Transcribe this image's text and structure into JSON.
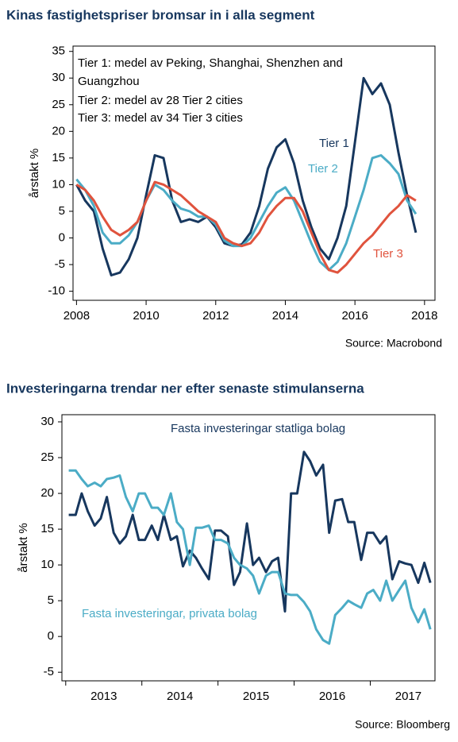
{
  "chart_data": [
    {
      "type": "line",
      "title": "Kinas fastighetspriser bromsar in i alla segment",
      "ylabel": "årstakt %",
      "source": "Source: Macrobond",
      "annotations": [
        "Tier 1: medel av Peking, Shanghai, Shenzhen and",
        "Guangzhou",
        "Tier 2: medel av 28 Tier 2 cities",
        "Tier 3: medel av 34 Tier 3 cities"
      ],
      "x": [
        2008,
        2008.25,
        2008.5,
        2008.75,
        2009,
        2009.25,
        2009.5,
        2009.75,
        2010,
        2010.25,
        2010.5,
        2010.75,
        2011,
        2011.25,
        2011.5,
        2011.75,
        2012,
        2012.25,
        2012.5,
        2012.75,
        2013,
        2013.25,
        2013.5,
        2013.75,
        2014,
        2014.25,
        2014.5,
        2014.75,
        2015,
        2015.25,
        2015.5,
        2015.75,
        2016,
        2016.25,
        2016.5,
        2016.75,
        2017,
        2017.25,
        2017.5,
        2017.75
      ],
      "series": [
        {
          "name": "Tier 1",
          "color": "#17375e",
          "values": [
            10,
            7,
            5,
            -2,
            -7,
            -6.5,
            -4,
            0,
            8,
            15.5,
            15,
            7,
            3,
            3.5,
            3,
            4,
            2,
            -1,
            -1.5,
            -1.2,
            1,
            6,
            13,
            17,
            18.5,
            14,
            7,
            2,
            -2,
            -4,
            0,
            6,
            18,
            30,
            27,
            29,
            25,
            16,
            8,
            1
          ]
        },
        {
          "name": "Tier 2",
          "color": "#4bacc6",
          "values": [
            11,
            9,
            6,
            1,
            -1,
            -1,
            0.5,
            3,
            7,
            10,
            9,
            7,
            5.5,
            5,
            4,
            4,
            2.5,
            -0.5,
            -1.5,
            -1.5,
            0,
            3,
            6,
            8.5,
            9.5,
            7,
            3,
            -1,
            -4.5,
            -6,
            -4.5,
            -1,
            4,
            9,
            15,
            15.5,
            14,
            12,
            7,
            4.5
          ]
        },
        {
          "name": "Tier 3",
          "color": "#e0533d",
          "values": [
            10,
            9,
            7,
            4,
            1.5,
            0.5,
            1.5,
            3,
            7,
            10.5,
            10,
            9,
            8,
            6.5,
            5,
            4,
            3,
            0,
            -1,
            -1.5,
            -1,
            1,
            4,
            6,
            7.5,
            7.5,
            5,
            1,
            -3,
            -6,
            -6.5,
            -5,
            -3,
            -1,
            0.5,
            2.5,
            4.5,
            6,
            8,
            7
          ]
        }
      ],
      "xlim": [
        2007.9,
        2018.3
      ],
      "xticks": [
        2008,
        2010,
        2012,
        2014,
        2016,
        2018
      ],
      "ylim": [
        -11.7,
        36
      ],
      "yticks": [
        -10,
        -5,
        0,
        5,
        10,
        15,
        20,
        25,
        30,
        35
      ]
    },
    {
      "type": "line",
      "title": "Investeringarna trendar ner efter senaste stimulanserna",
      "ylabel": "årstakt %",
      "source": "Source: Bloomberg",
      "x": [
        2013.04,
        2013.13,
        2013.21,
        2013.29,
        2013.38,
        2013.46,
        2013.54,
        2013.63,
        2013.71,
        2013.79,
        2013.88,
        2013.96,
        2014.04,
        2014.13,
        2014.21,
        2014.29,
        2014.38,
        2014.46,
        2014.54,
        2014.63,
        2014.71,
        2014.79,
        2014.88,
        2014.96,
        2015.04,
        2015.13,
        2015.21,
        2015.29,
        2015.38,
        2015.46,
        2015.54,
        2015.63,
        2015.71,
        2015.79,
        2015.88,
        2015.96,
        2016.04,
        2016.13,
        2016.21,
        2016.29,
        2016.38,
        2016.46,
        2016.54,
        2016.63,
        2016.71,
        2016.79,
        2016.88,
        2016.96,
        2017.04,
        2017.13,
        2017.21,
        2017.29,
        2017.38,
        2017.46,
        2017.54,
        2017.63,
        2017.71,
        2017.79
      ],
      "series": [
        {
          "name": "Fasta investeringar statliga bolag",
          "color": "#17375e",
          "values": [
            17,
            17,
            20,
            17.5,
            15.5,
            16.5,
            19.5,
            14.5,
            13,
            14,
            17,
            13.5,
            13.5,
            15.5,
            13.5,
            17,
            13.5,
            14,
            9.8,
            12,
            11,
            9.5,
            8,
            14.8,
            14.8,
            14,
            7.2,
            9,
            15.8,
            10,
            11,
            9,
            10.5,
            11,
            3.5,
            20,
            20,
            25.8,
            24.5,
            22.5,
            24,
            14.5,
            19,
            19.2,
            16,
            16,
            10.7,
            14.5,
            14.5,
            13,
            14,
            8,
            10.5,
            10.2,
            10,
            7.5,
            10.3,
            7.5
          ]
        },
        {
          "name": "Fasta investeringar, privata bolag",
          "color": "#4bacc6",
          "values": [
            23.2,
            23.2,
            22,
            21,
            21.5,
            21,
            22,
            22.2,
            22.5,
            19.5,
            17.5,
            20,
            20,
            18,
            18,
            17,
            20,
            16,
            15,
            10,
            15.2,
            15.2,
            15.5,
            13.5,
            13.5,
            13,
            11,
            10,
            9.5,
            8.5,
            6,
            8.5,
            9,
            9,
            6,
            5.8,
            5.8,
            4.8,
            3.5,
            1,
            -0.5,
            -1,
            3,
            4,
            5,
            4.5,
            4,
            6,
            6.5,
            5,
            7.8,
            5,
            6.5,
            7.8,
            4,
            2,
            3.8,
            1
          ]
        }
      ],
      "xlim": [
        2012.95,
        2017.85
      ],
      "xticks": [
        {
          "value": 2013.5,
          "label": "2013"
        },
        {
          "value": 2014.5,
          "label": "2014"
        },
        {
          "value": 2015.5,
          "label": "2015"
        },
        {
          "value": 2016.5,
          "label": "2016"
        },
        {
          "value": 2017.5,
          "label": "2017"
        }
      ],
      "ylim": [
        -6.2,
        31
      ],
      "yticks": [
        -5,
        0,
        5,
        10,
        15,
        20,
        25,
        30
      ]
    }
  ]
}
